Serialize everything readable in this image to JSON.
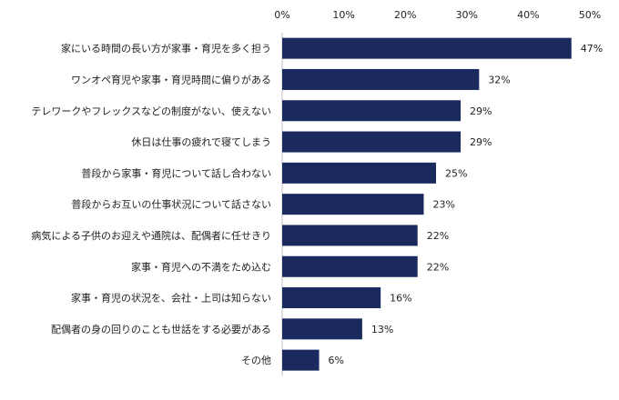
{
  "chart_data": {
    "type": "bar",
    "orientation": "horizontal",
    "categories": [
      "家にいる時間の長い方が家事・育児を多く担う",
      "ワンオペ育児や家事・育児時間に偏りがある",
      "テレワークやフレックスなどの制度がない、使えない",
      "休日は仕事の疲れで寝てしまう",
      "普段から家事・育児について話し合わない",
      "普段からお互いの仕事状況について話さない",
      "病気による子供のお迎えや通院は、配偶者に任せきり",
      "家事・育児への不満をため込む",
      "家事・育児の状況を、会社・上司は知らない",
      "配偶者の身の回りのことも世話をする必要がある",
      "その他"
    ],
    "values": [
      47,
      32,
      29,
      29,
      25,
      23,
      22,
      22,
      16,
      13,
      6
    ],
    "value_labels": [
      "47%",
      "32%",
      "29%",
      "29%",
      "25%",
      "23%",
      "22%",
      "22%",
      "16%",
      "13%",
      "6%"
    ],
    "xlim": [
      0,
      50
    ],
    "x_ticks": [
      0,
      10,
      20,
      30,
      40,
      50
    ],
    "x_tick_labels": [
      "0%",
      "10%",
      "20%",
      "30%",
      "40%",
      "50%"
    ],
    "axis_position": "top",
    "grid": false,
    "bar_color": "#1a2a5e"
  }
}
